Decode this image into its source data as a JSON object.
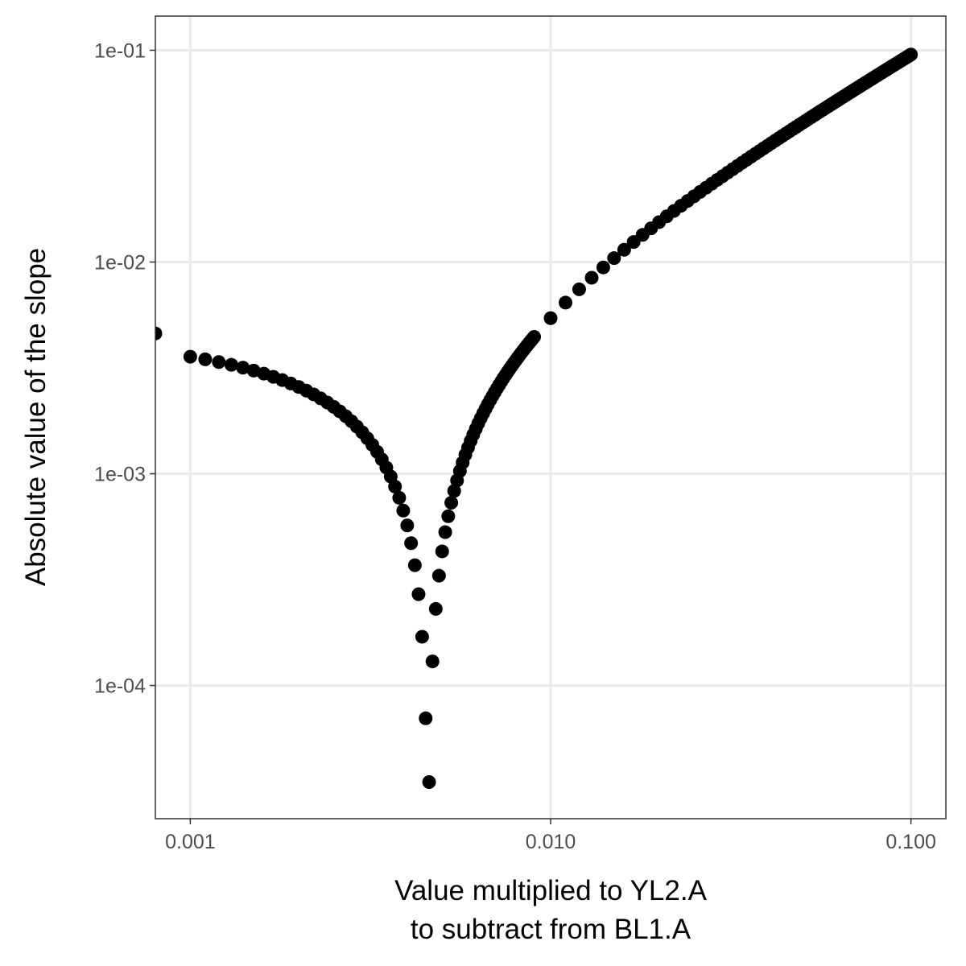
{
  "chart_data": {
    "type": "scatter",
    "title": "",
    "xlabel_lines": [
      "Value multiplied to YL2.A",
      "to subtract from BL1.A"
    ],
    "ylabel": "Absolute value of the slope",
    "x_scale": "log10",
    "y_scale": "log10",
    "xlim": [
      0.0008,
      0.125
    ],
    "ylim": [
      2.35e-05,
      0.145
    ],
    "x_ticks": [
      {
        "value": 0.001,
        "label": "0.001"
      },
      {
        "value": 0.01,
        "label": "0.010"
      },
      {
        "value": 0.1,
        "label": "0.100"
      }
    ],
    "y_ticks": [
      {
        "value": 0.1,
        "label": "1e-01"
      },
      {
        "value": 0.01,
        "label": "1e-02"
      },
      {
        "value": 0.001,
        "label": "1e-03"
      },
      {
        "value": 0.0001,
        "label": "1e-04"
      }
    ],
    "grid": true,
    "point_color": "#000000",
    "x": [
      0.0008,
      0.001,
      0.0011,
      0.0012,
      0.0013,
      0.0014,
      0.0015,
      0.0016,
      0.0017,
      0.0018,
      0.0019,
      0.002,
      0.0021,
      0.0022,
      0.0023,
      0.0024,
      0.0025,
      0.0026,
      0.0027,
      0.0028,
      0.0029,
      0.003,
      0.0031,
      0.0032,
      0.0033,
      0.0034,
      0.0035,
      0.0036,
      0.0037,
      0.0038,
      0.0039,
      0.004,
      0.0041,
      0.0042,
      0.0043,
      0.0044,
      0.0045,
      0.0046,
      0.0047,
      0.0048,
      0.0049,
      0.005,
      0.0051,
      0.0052,
      0.0053,
      0.0054,
      0.0055,
      0.0056,
      0.0057,
      0.0058,
      0.0059,
      0.006,
      0.0061,
      0.0062,
      0.0063,
      0.0064,
      0.0065,
      0.0066,
      0.0067,
      0.0068,
      0.0069,
      0.007,
      0.0071,
      0.0072,
      0.0073,
      0.0074,
      0.0075,
      0.0076,
      0.0077,
      0.0078,
      0.0079,
      0.008,
      0.0081,
      0.0082,
      0.0083,
      0.0084,
      0.0085,
      0.0086,
      0.0087,
      0.0088,
      0.0089,
      0.009,
      0.01,
      0.011,
      0.012,
      0.013,
      0.014,
      0.015,
      0.016,
      0.017,
      0.018,
      0.019,
      0.02,
      0.021,
      0.022,
      0.023,
      0.024,
      0.025,
      0.026,
      0.027,
      0.028,
      0.029,
      0.03,
      0.031,
      0.032,
      0.033,
      0.034,
      0.035,
      0.036,
      0.037,
      0.038,
      0.039,
      0.04,
      0.041,
      0.042,
      0.043,
      0.044,
      0.045,
      0.046,
      0.047,
      0.048,
      0.049,
      0.05,
      0.051,
      0.052,
      0.053,
      0.054,
      0.055,
      0.056,
      0.057,
      0.058,
      0.059,
      0.06,
      0.061,
      0.062,
      0.063,
      0.064,
      0.065,
      0.066,
      0.067,
      0.068,
      0.069,
      0.07,
      0.071,
      0.072,
      0.073,
      0.074,
      0.075,
      0.076,
      0.077,
      0.078,
      0.079,
      0.08,
      0.081,
      0.082,
      0.083,
      0.084,
      0.085,
      0.086,
      0.087,
      0.088,
      0.089,
      0.09,
      0.091,
      0.092,
      0.093,
      0.094,
      0.095,
      0.096,
      0.097,
      0.098,
      0.099,
      0.1
    ],
    "y": [
      0.0046,
      0.00357,
      0.00347,
      0.00337,
      0.00327,
      0.00317,
      0.00307,
      0.00297,
      0.00287,
      0.00277,
      0.00267,
      0.00257,
      0.00247,
      0.00237,
      0.00227,
      0.00217,
      0.00207,
      0.00197,
      0.00187,
      0.00177,
      0.00167,
      0.00157,
      0.00147,
      0.00137,
      0.00127,
      0.00117,
      0.00107,
      0.00097,
      0.00087,
      0.00077,
      0.00067,
      0.00057,
      0.00047,
      0.00037,
      0.00027,
      0.00017,
      7e-05,
      3.5e-05,
      0.00013,
      0.00023,
      0.00033,
      0.00043,
      0.00053,
      0.00063,
      0.00073,
      0.00083,
      0.00093,
      0.00103,
      0.00113,
      0.00123,
      0.00133,
      0.00143,
      0.00153,
      0.00163,
      0.00173,
      0.00183,
      0.00193,
      0.00203,
      0.00213,
      0.00223,
      0.00233,
      0.00243,
      0.00253,
      0.00263,
      0.00273,
      0.00283,
      0.00293,
      0.00303,
      0.00313,
      0.00323,
      0.00333,
      0.00343,
      0.00353,
      0.00363,
      0.00373,
      0.00383,
      0.00393,
      0.00403,
      0.00413,
      0.00423,
      0.00433,
      0.00443,
      0.00543,
      0.00643,
      0.00743,
      0.00843,
      0.00943,
      0.01043,
      0.01143,
      0.01243,
      0.01343,
      0.01443,
      0.01543,
      0.01643,
      0.01743,
      0.01843,
      0.01943,
      0.02043,
      0.02143,
      0.02243,
      0.02343,
      0.02443,
      0.02543,
      0.02643,
      0.02743,
      0.02843,
      0.02943,
      0.03043,
      0.03143,
      0.03243,
      0.03343,
      0.03443,
      0.03543,
      0.03643,
      0.03743,
      0.03843,
      0.03943,
      0.04043,
      0.04143,
      0.04243,
      0.04343,
      0.04443,
      0.04543,
      0.04643,
      0.04743,
      0.04843,
      0.04943,
      0.05043,
      0.05143,
      0.05243,
      0.05343,
      0.05443,
      0.05543,
      0.05643,
      0.05743,
      0.05843,
      0.05943,
      0.06043,
      0.06143,
      0.06243,
      0.06343,
      0.06443,
      0.06543,
      0.06643,
      0.06743,
      0.06843,
      0.06943,
      0.07043,
      0.07143,
      0.07243,
      0.07343,
      0.07443,
      0.07543,
      0.07643,
      0.07743,
      0.07843,
      0.07943,
      0.08043,
      0.08143,
      0.08243,
      0.08343,
      0.08443,
      0.08543,
      0.08643,
      0.08743,
      0.08843,
      0.08943,
      0.09043,
      0.09143,
      0.09243,
      0.09343,
      0.09443,
      0.09543
    ]
  }
}
